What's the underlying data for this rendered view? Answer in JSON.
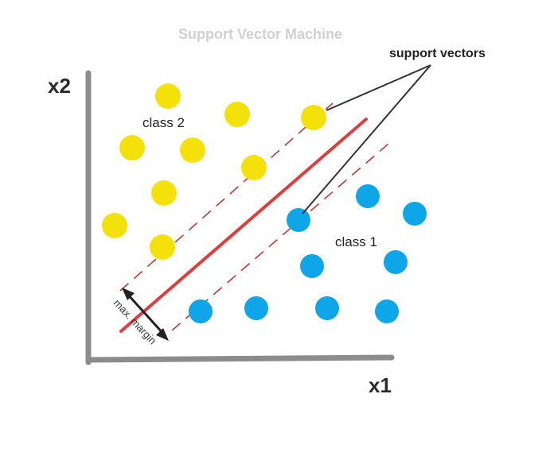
{
  "title": "Support Vector Machine",
  "axes": {
    "x_label": "x1",
    "y_label": "x2"
  },
  "labels": {
    "class_1": "class 1",
    "class_2": "class 2",
    "support_vectors": "support vectors",
    "margin": "max. margin"
  },
  "colors": {
    "class_1": "#0ea5e9",
    "class_2": "#f5e10a",
    "hyperplane": "#e03c3c",
    "margin_lines": "#c0392b",
    "axis": "#8c8c8c",
    "arrow": "#222222"
  },
  "icons": {
    "margin_arrow": "double-headed-arrow-icon"
  }
}
